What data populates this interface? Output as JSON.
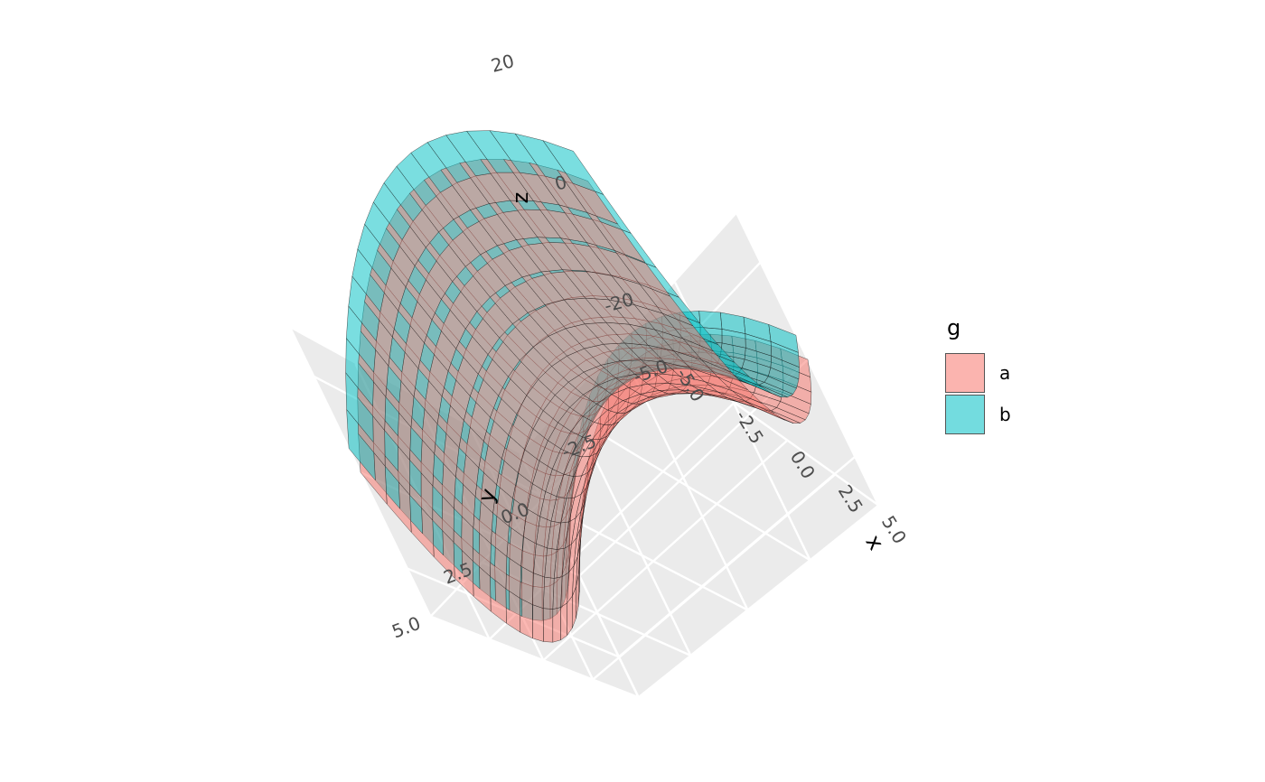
{
  "chart_data": {
    "type": "surface",
    "x": [
      -5.0,
      -4.4444,
      -3.8889,
      -3.3333,
      -2.7778,
      -2.2222,
      -1.6667,
      -1.1111,
      -0.5556,
      0.0,
      0.5556,
      1.1111,
      1.6667,
      2.2222,
      2.7778,
      3.3333,
      3.8889,
      4.4444,
      5.0
    ],
    "y": [
      -5.0,
      -4.4444,
      -3.8889,
      -3.3333,
      -2.7778,
      -2.2222,
      -1.6667,
      -1.1111,
      -0.5556,
      0.0,
      0.5556,
      1.1111,
      1.6667,
      2.2222,
      2.7778,
      3.3333,
      3.8889,
      4.4444,
      5.0
    ],
    "series": [
      {
        "name": "a",
        "formula": "z = x^2 - y^2",
        "color": "#F8766D"
      },
      {
        "name": "b",
        "formula": "z = x^2 - y^2 + 5",
        "color": "#00BFC4"
      }
    ],
    "xlabel": "x",
    "ylabel": "y",
    "zlabel": "z",
    "xticks": [
      -5.0,
      -2.5,
      0.0,
      2.5,
      5.0
    ],
    "yticks": [
      -5.0,
      -2.5,
      0.0,
      2.5,
      5.0
    ],
    "zticks": [
      -20,
      0,
      20
    ],
    "xtick_labels": [
      "-5.0",
      "-2.5",
      "0.0",
      "2.5",
      "5.0"
    ],
    "ytick_labels": [
      "-5.0",
      "-2.5",
      "0.0",
      "2.5",
      "5.0"
    ],
    "ztick_labels": [
      "-20",
      "0",
      "20"
    ],
    "xlim": [
      -5,
      5
    ],
    "ylim": [
      -5,
      5
    ],
    "zlim": [
      -30,
      30
    ],
    "grid": true,
    "legend_position": "right",
    "legend_title": "g",
    "colors": {
      "panel": "#EBEBEB",
      "grid": "#FFFFFF",
      "mesh": "#1a1a1a"
    }
  }
}
